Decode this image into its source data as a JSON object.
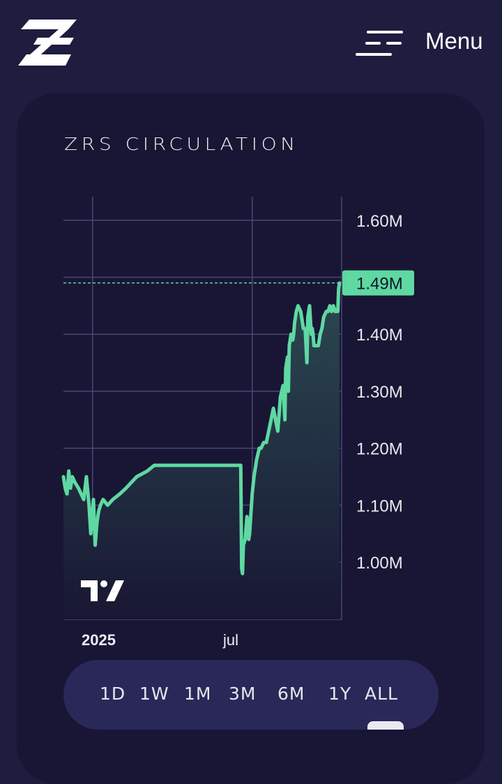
{
  "header": {
    "logo_icon": "zrs-logo-icon",
    "menu_icon": "hamburger-menu-icon",
    "menu_label": "Menu"
  },
  "card": {
    "title": "ZRS CIRCULATION",
    "watermark_icon": "tradingview-logo-icon"
  },
  "ranges": {
    "items": [
      "1D",
      "1W",
      "1M",
      "3M",
      "6M",
      "1Y",
      "ALL"
    ],
    "selected": "ALL"
  },
  "chart_data": {
    "type": "area",
    "title": "ZRS CIRCULATION",
    "xlabel": "",
    "ylabel": "",
    "x_ticks": [
      "2025",
      "jul"
    ],
    "y_ticks": [
      "1.60M",
      "1.40M",
      "1.30M",
      "1.20M",
      "1.10M",
      "1.00M"
    ],
    "ylim": [
      0.9,
      1.64
    ],
    "last_value_label": "1.49M",
    "last_value": 1.49,
    "grid": true,
    "colors": {
      "line": "#5fd8a2",
      "area_top": "#2c4b53",
      "area_bottom": "#181733",
      "grid": "#4a4776",
      "badge": "#5fd8a2"
    },
    "series": [
      {
        "x": [
          "2024-11-29",
          "2024-12-01",
          "2024-12-03",
          "2024-12-05",
          "2024-12-07",
          "2024-12-09",
          "2024-12-12",
          "2024-12-16",
          "2024-12-19",
          "2024-12-22",
          "2024-12-25",
          "2024-12-28",
          "2024-12-30",
          "2025-01-02",
          "2025-01-04",
          "2025-01-06",
          "2025-01-08",
          "2025-01-10",
          "2025-01-13",
          "2025-01-18",
          "2025-01-24",
          "2025-02-01",
          "2025-02-08",
          "2025-02-14",
          "2025-02-20",
          "2025-02-26",
          "2025-03-04",
          "2025-03-08",
          "2025-03-12",
          "2025-03-16",
          "2025-04-01",
          "2025-04-15",
          "2025-05-01",
          "2025-05-15",
          "2025-05-30",
          "2025-06-18",
          "2025-06-19",
          "2025-06-20",
          "2025-06-21",
          "2025-06-23",
          "2025-06-25",
          "2025-06-27",
          "2025-06-28",
          "2025-07-01",
          "2025-07-03",
          "2025-07-06",
          "2025-07-09",
          "2025-07-11",
          "2025-07-14",
          "2025-07-17",
          "2025-07-21",
          "2025-07-25",
          "2025-07-30",
          "2025-08-02",
          "2025-08-05",
          "2025-08-07",
          "2025-08-08",
          "2025-08-10",
          "2025-08-11",
          "2025-08-12",
          "2025-08-13",
          "2025-08-14",
          "2025-08-15",
          "2025-08-16",
          "2025-08-17",
          "2025-08-18",
          "2025-08-20",
          "2025-08-22",
          "2025-08-25",
          "2025-08-28",
          "2025-08-30",
          "2025-09-01",
          "2025-09-02",
          "2025-09-03",
          "2025-09-04",
          "2025-09-06",
          "2025-09-07",
          "2025-09-08",
          "2025-09-09",
          "2025-09-10",
          "2025-09-11",
          "2025-09-12",
          "2025-09-14",
          "2025-09-16",
          "2025-09-18",
          "2025-09-20",
          "2025-09-23",
          "2025-09-25",
          "2025-09-27",
          "2025-09-29",
          "2025-10-01",
          "2025-10-03",
          "2025-10-05",
          "2025-10-06",
          "2025-10-07",
          "2025-10-08"
        ],
        "y": [
          1.15,
          1.13,
          1.12,
          1.16,
          1.13,
          1.15,
          1.14,
          1.13,
          1.12,
          1.11,
          1.15,
          1.1,
          1.05,
          1.11,
          1.03,
          1.07,
          1.09,
          1.1,
          1.11,
          1.1,
          1.11,
          1.12,
          1.13,
          1.14,
          1.15,
          1.155,
          1.16,
          1.165,
          1.17,
          1.17,
          1.17,
          1.17,
          1.17,
          1.17,
          1.17,
          1.17,
          0.99,
          0.98,
          1.03,
          1.04,
          1.08,
          1.04,
          1.05,
          1.12,
          1.15,
          1.18,
          1.2,
          1.2,
          1.21,
          1.21,
          1.24,
          1.27,
          1.23,
          1.29,
          1.31,
          1.25,
          1.34,
          1.36,
          1.3,
          1.38,
          1.39,
          1.4,
          1.39,
          1.39,
          1.4,
          1.42,
          1.44,
          1.45,
          1.44,
          1.41,
          1.41,
          1.35,
          1.43,
          1.44,
          1.45,
          1.4,
          1.41,
          1.4,
          1.38,
          1.38,
          1.38,
          1.38,
          1.38,
          1.4,
          1.41,
          1.43,
          1.44,
          1.44,
          1.45,
          1.44,
          1.45,
          1.44,
          1.44,
          1.44,
          1.48,
          1.49
        ]
      }
    ]
  }
}
